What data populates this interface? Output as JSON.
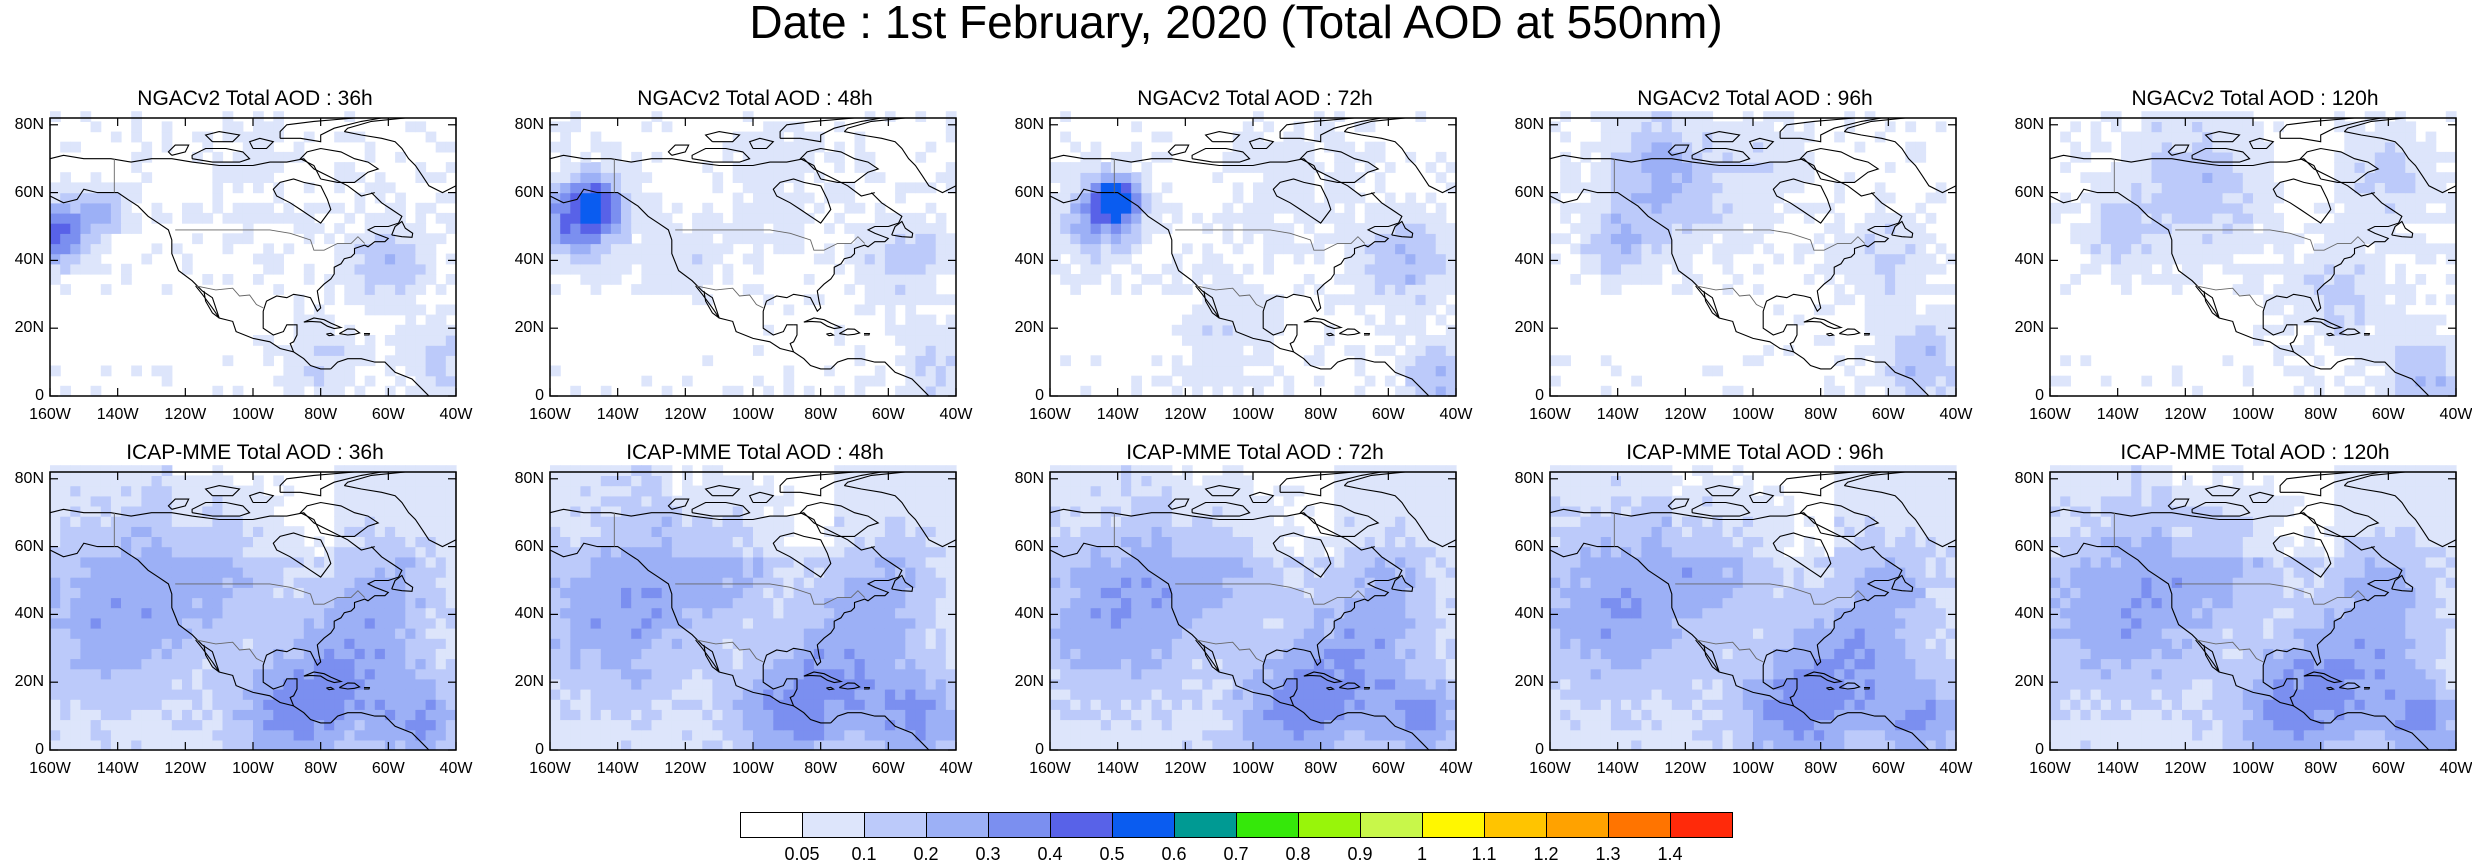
{
  "title": "Date : 1st February, 2020 (Total AOD at 550nm)",
  "panels": [
    {
      "title": "NGACv2 Total AOD : 36h"
    },
    {
      "title": "NGACv2 Total AOD : 48h"
    },
    {
      "title": "NGACv2 Total AOD : 72h"
    },
    {
      "title": "NGACv2 Total AOD : 96h"
    },
    {
      "title": "NGACv2 Total AOD : 120h"
    },
    {
      "title": "ICAP-MME Total AOD : 36h"
    },
    {
      "title": "ICAP-MME Total AOD : 48h"
    },
    {
      "title": "ICAP-MME Total AOD : 72h"
    },
    {
      "title": "ICAP-MME Total AOD : 96h"
    },
    {
      "title": "ICAP-MME Total AOD : 120h"
    }
  ],
  "lat_labels": [
    "80N",
    "60N",
    "40N",
    "20N",
    "0"
  ],
  "lon_labels": [
    "160W",
    "140W",
    "120W",
    "100W",
    "80W",
    "60W",
    "40W"
  ],
  "colorbar": {
    "labels": [
      "0.05",
      "0.1",
      "0.2",
      "0.3",
      "0.4",
      "0.5",
      "0.6",
      "0.7",
      "0.8",
      "0.9",
      "1",
      "1.1",
      "1.2",
      "1.3",
      "1.4"
    ],
    "colors": [
      "#ffffff",
      "#dde5fb",
      "#bccafa",
      "#9cb0f6",
      "#7b8ff0",
      "#5862e8",
      "#0a5cf0",
      "#009a93",
      "#35e80a",
      "#98f50a",
      "#c8f74a",
      "#fff700",
      "#ffc400",
      "#ffa200",
      "#ff7400",
      "#ff2a0a"
    ]
  }
}
